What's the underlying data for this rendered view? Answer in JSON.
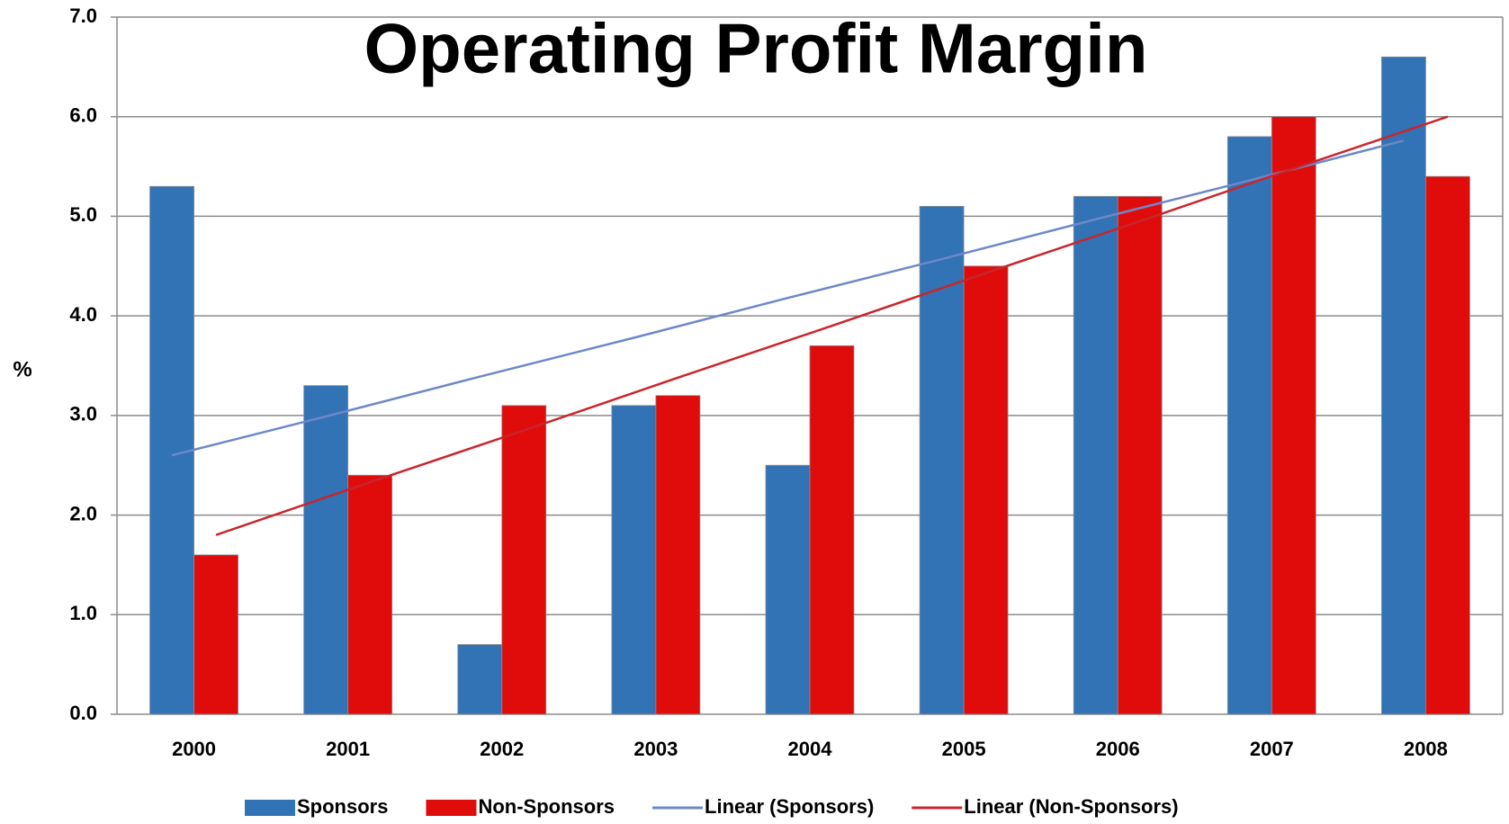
{
  "chart_data": {
    "type": "bar",
    "title": "Operating Profit Margin",
    "y_label": "%",
    "categories": [
      "2000",
      "2001",
      "2002",
      "2003",
      "2004",
      "2005",
      "2006",
      "2007",
      "2008"
    ],
    "series": [
      {
        "name": "Sponsors",
        "color": "#3173b5",
        "values": [
          5.3,
          3.3,
          0.7,
          3.1,
          2.5,
          5.1,
          5.2,
          5.8,
          6.6
        ]
      },
      {
        "name": "Non-Sponsors",
        "color": "#e00c0c",
        "values": [
          1.6,
          2.4,
          3.1,
          3.2,
          3.7,
          4.5,
          5.2,
          6.0,
          5.4
        ]
      }
    ],
    "trendlines": [
      {
        "name": "Linear (Sponsors)",
        "color": "#6d88c9",
        "values": [
          2.6,
          2.99,
          3.39,
          3.78,
          4.18,
          4.57,
          4.97,
          5.36,
          5.76
        ]
      },
      {
        "name": "Linear (Non-Sponsors)",
        "color": "#c8262c",
        "values": [
          1.8,
          2.33,
          2.85,
          3.38,
          3.9,
          4.43,
          4.95,
          5.48,
          6.0
        ]
      }
    ],
    "ylim": [
      0,
      7
    ],
    "yticks": [
      {
        "value": 0,
        "label": "0.0"
      },
      {
        "value": 1,
        "label": "1.0"
      },
      {
        "value": 2,
        "label": "2.0"
      },
      {
        "value": 3,
        "label": "3.0"
      },
      {
        "value": 4,
        "label": "4.0"
      },
      {
        "value": 5,
        "label": "5.0"
      },
      {
        "value": 6,
        "label": "6.0"
      },
      {
        "value": 7,
        "label": "7.0"
      }
    ],
    "grid": true,
    "legend": "bottom"
  }
}
